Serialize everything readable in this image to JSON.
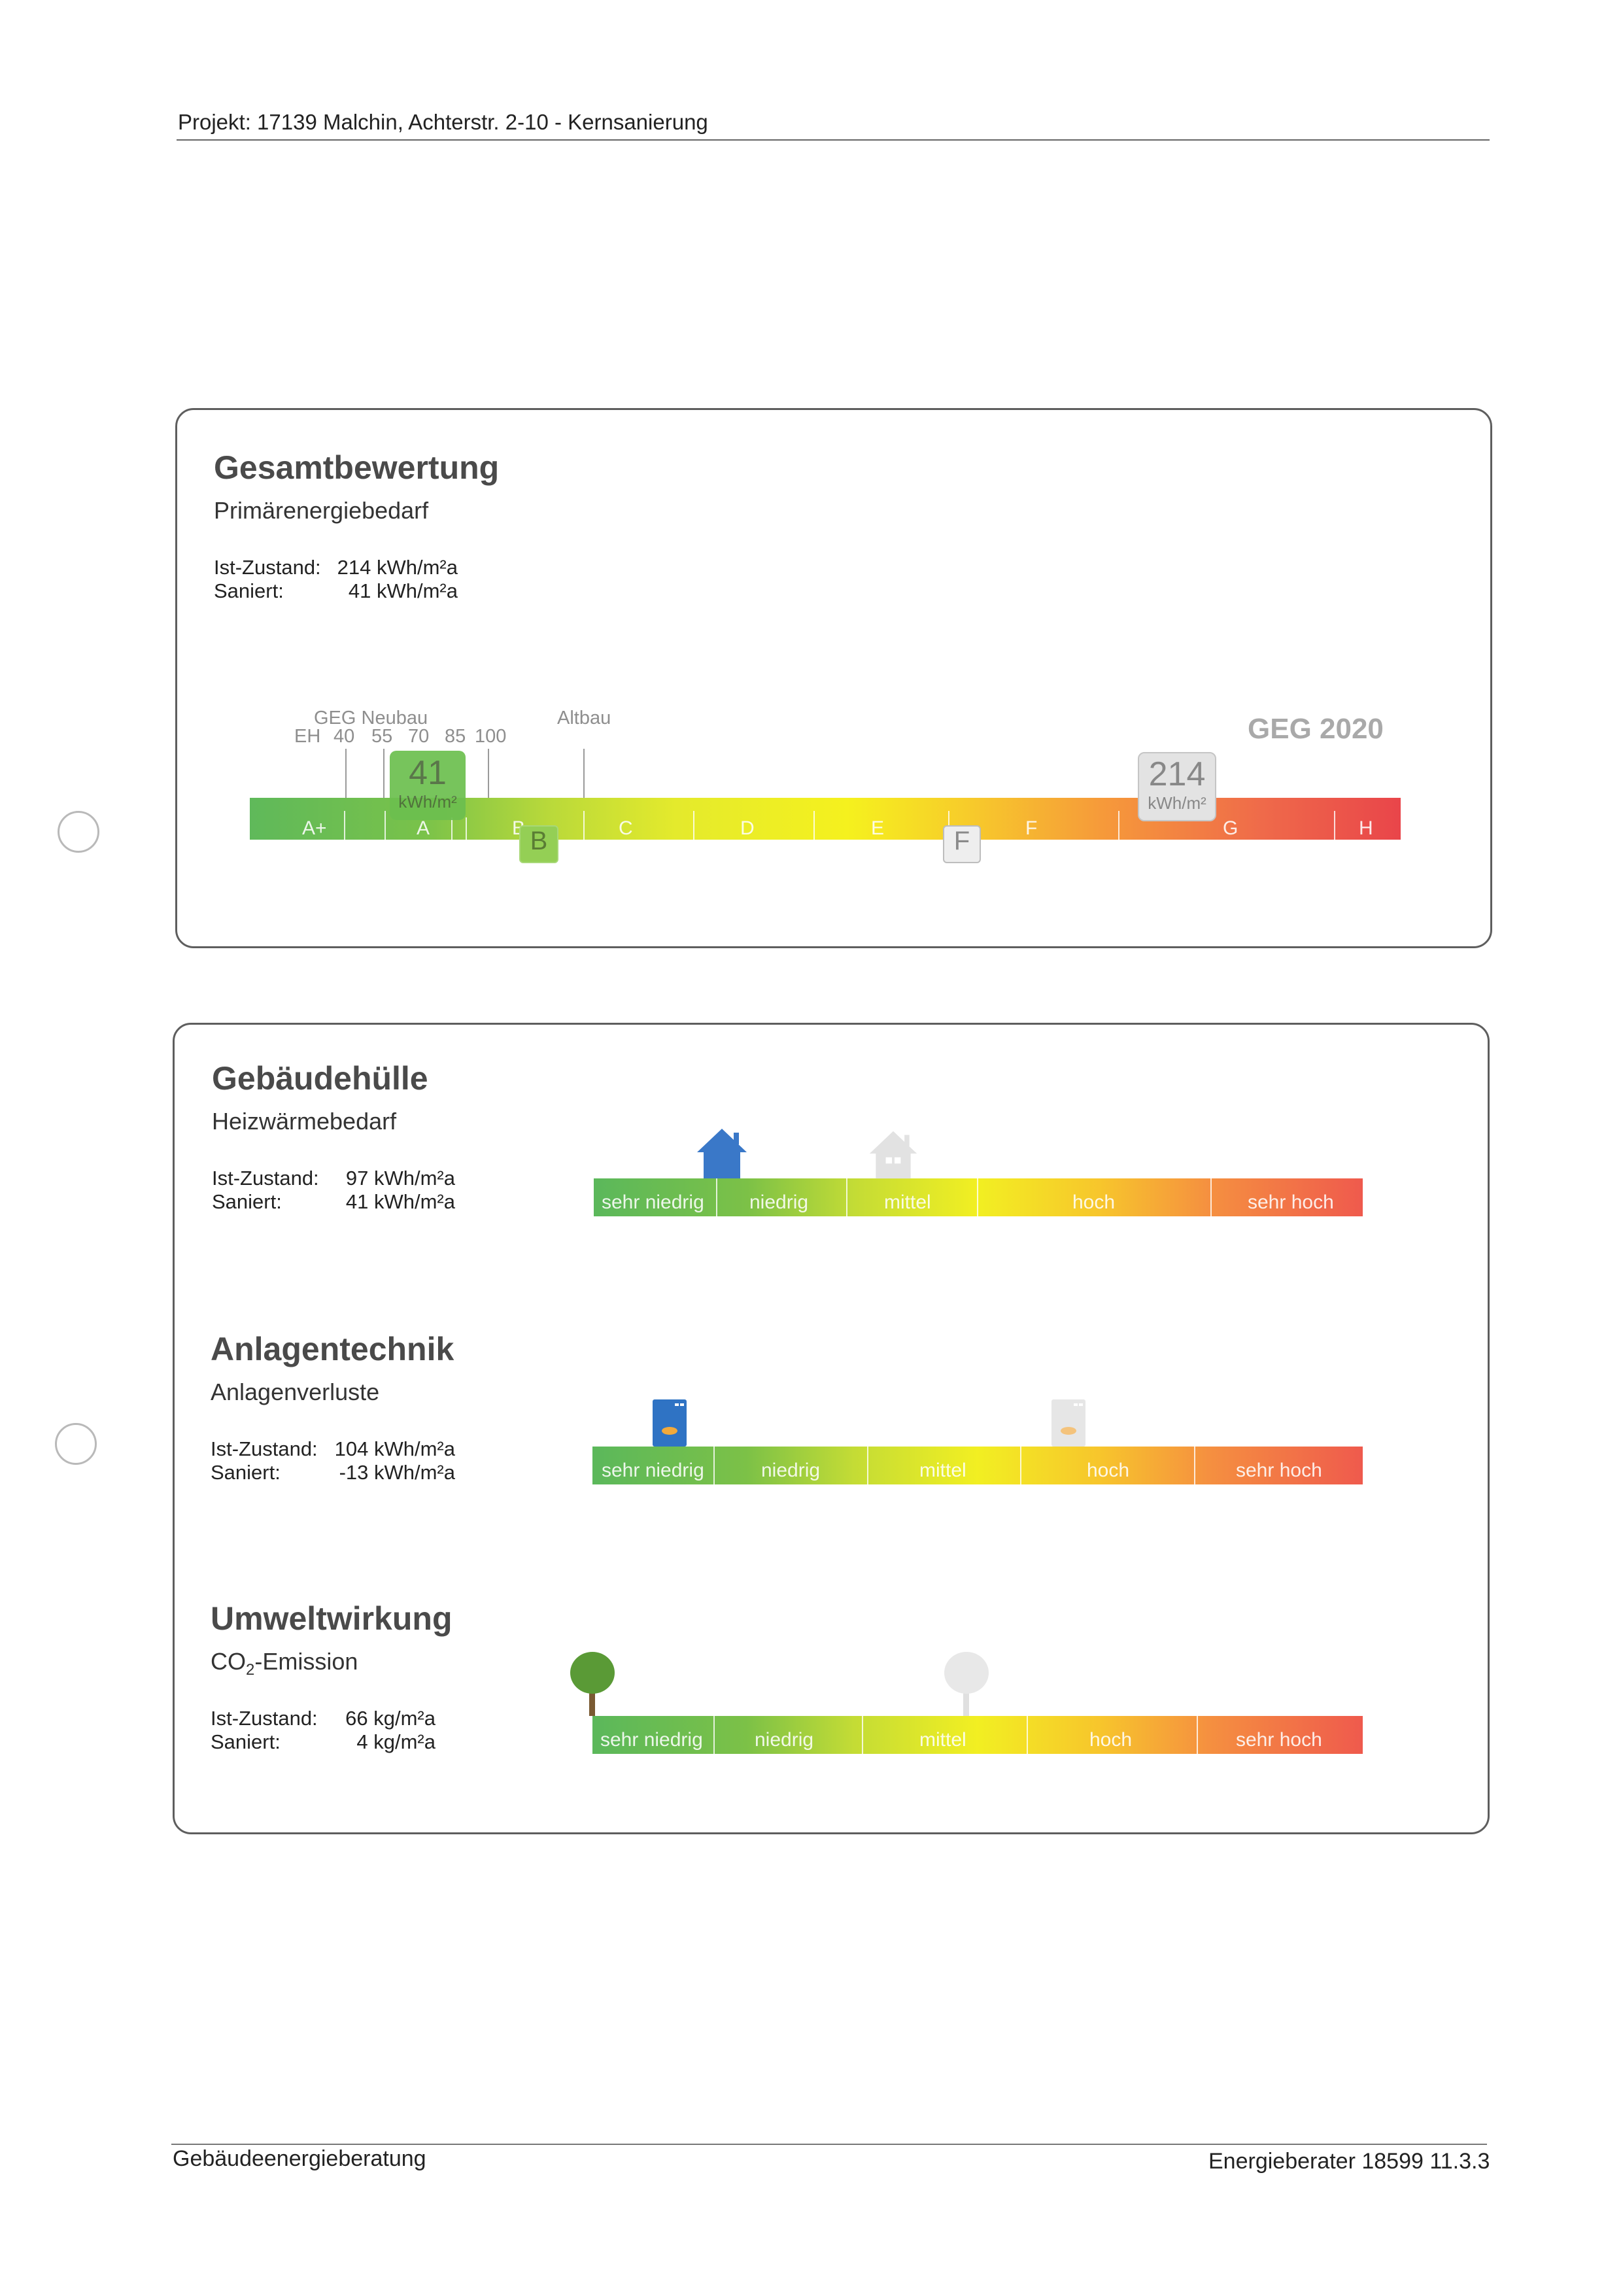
{
  "header": {
    "project": "Projekt: 17139 Malchin, Achterstr. 2-10 - Kernsanierung"
  },
  "footer": {
    "left": "Gebäudeenergieberatung",
    "right": "Energieberater 18599 11.3.3"
  },
  "gesamt": {
    "title": "Gesamtbewertung",
    "subtitle": "Primärenergiebedarf",
    "ist_label": "Ist-Zustand:",
    "ist_value": "214 kWh/m²a",
    "saniert_label": "Saniert:",
    "saniert_value": "41 kWh/m²a",
    "geg_neubau": "GEG  Neubau",
    "eh": "EH",
    "eh_levels": [
      "40",
      "55",
      "70",
      "85",
      "100"
    ],
    "altbau": "Altbau",
    "geg2020": "GEG 2020",
    "classes": [
      "A+",
      "A",
      "B",
      "C",
      "D",
      "E",
      "F",
      "G",
      "H"
    ],
    "marker_saniert": {
      "value": "41",
      "unit": "kWh/m²",
      "class": "B"
    },
    "marker_ist": {
      "value": "214",
      "unit": "kWh/m²",
      "class": "F"
    }
  },
  "scale_labels": [
    "sehr niedrig",
    "niedrig",
    "mittel",
    "hoch",
    "sehr hoch"
  ],
  "huelle": {
    "title": "Gebäudehülle",
    "subtitle": "Heizwärmebedarf",
    "ist_label": "Ist-Zustand:",
    "ist_value": "97 kWh/m²a",
    "saniert_label": "Saniert:",
    "saniert_value": "41 kWh/m²a",
    "icon": "house-icon"
  },
  "anlagen": {
    "title": "Anlagentechnik",
    "subtitle": "Anlagenverluste",
    "ist_label": "Ist-Zustand:",
    "ist_value": "104 kWh/m²a",
    "saniert_label": "Saniert:",
    "saniert_value": "-13 kWh/m²a",
    "icon": "boiler-icon"
  },
  "umwelt": {
    "title": "Umweltwirkung",
    "subtitle_main": "CO",
    "subtitle_sub": "2",
    "subtitle_rest": "-Emission",
    "ist_label": "Ist-Zustand:",
    "ist_value": "66 kg/m²a",
    "saniert_label": "Saniert:",
    "saniert_value": "4 kg/m²a",
    "icon": "tree-icon"
  }
}
